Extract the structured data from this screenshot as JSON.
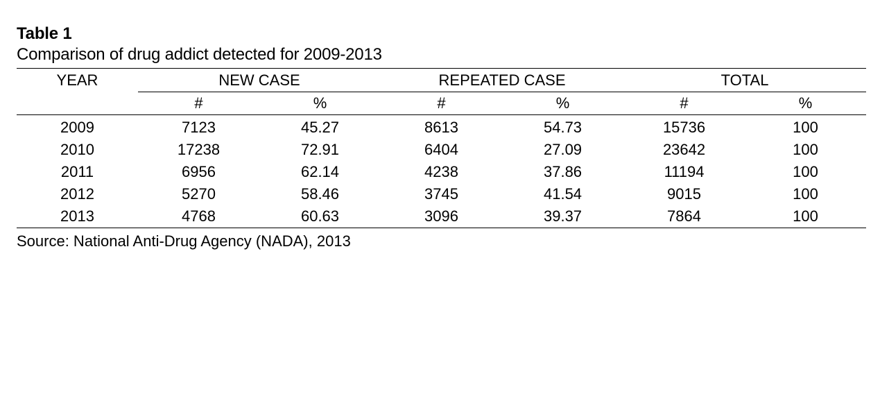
{
  "table_label": "Table 1",
  "caption": "Comparison of drug addict detected for 2009-2013",
  "header": {
    "year": "YEAR",
    "groups": [
      "NEW CASE",
      "REPEATED CASE",
      "TOTAL"
    ],
    "subheaders": [
      "#",
      "%",
      "#",
      "%",
      "#",
      "%"
    ]
  },
  "rows": [
    {
      "year": "2009",
      "cells": [
        "7123",
        "45.27",
        "8613",
        "54.73",
        "15736",
        "100"
      ]
    },
    {
      "year": "2010",
      "cells": [
        "17238",
        "72.91",
        "6404",
        "27.09",
        "23642",
        "100"
      ]
    },
    {
      "year": "2011",
      "cells": [
        "6956",
        "62.14",
        "4238",
        "37.86",
        "11194",
        "100"
      ]
    },
    {
      "year": "2012",
      "cells": [
        "5270",
        "58.46",
        "3745",
        "41.54",
        "9015",
        "100"
      ]
    },
    {
      "year": "2013",
      "cells": [
        "4768",
        "60.63",
        "3096",
        "39.37",
        "7864",
        "100"
      ]
    }
  ],
  "source": "Source: National Anti-Drug Agency (NADA), 2013"
}
